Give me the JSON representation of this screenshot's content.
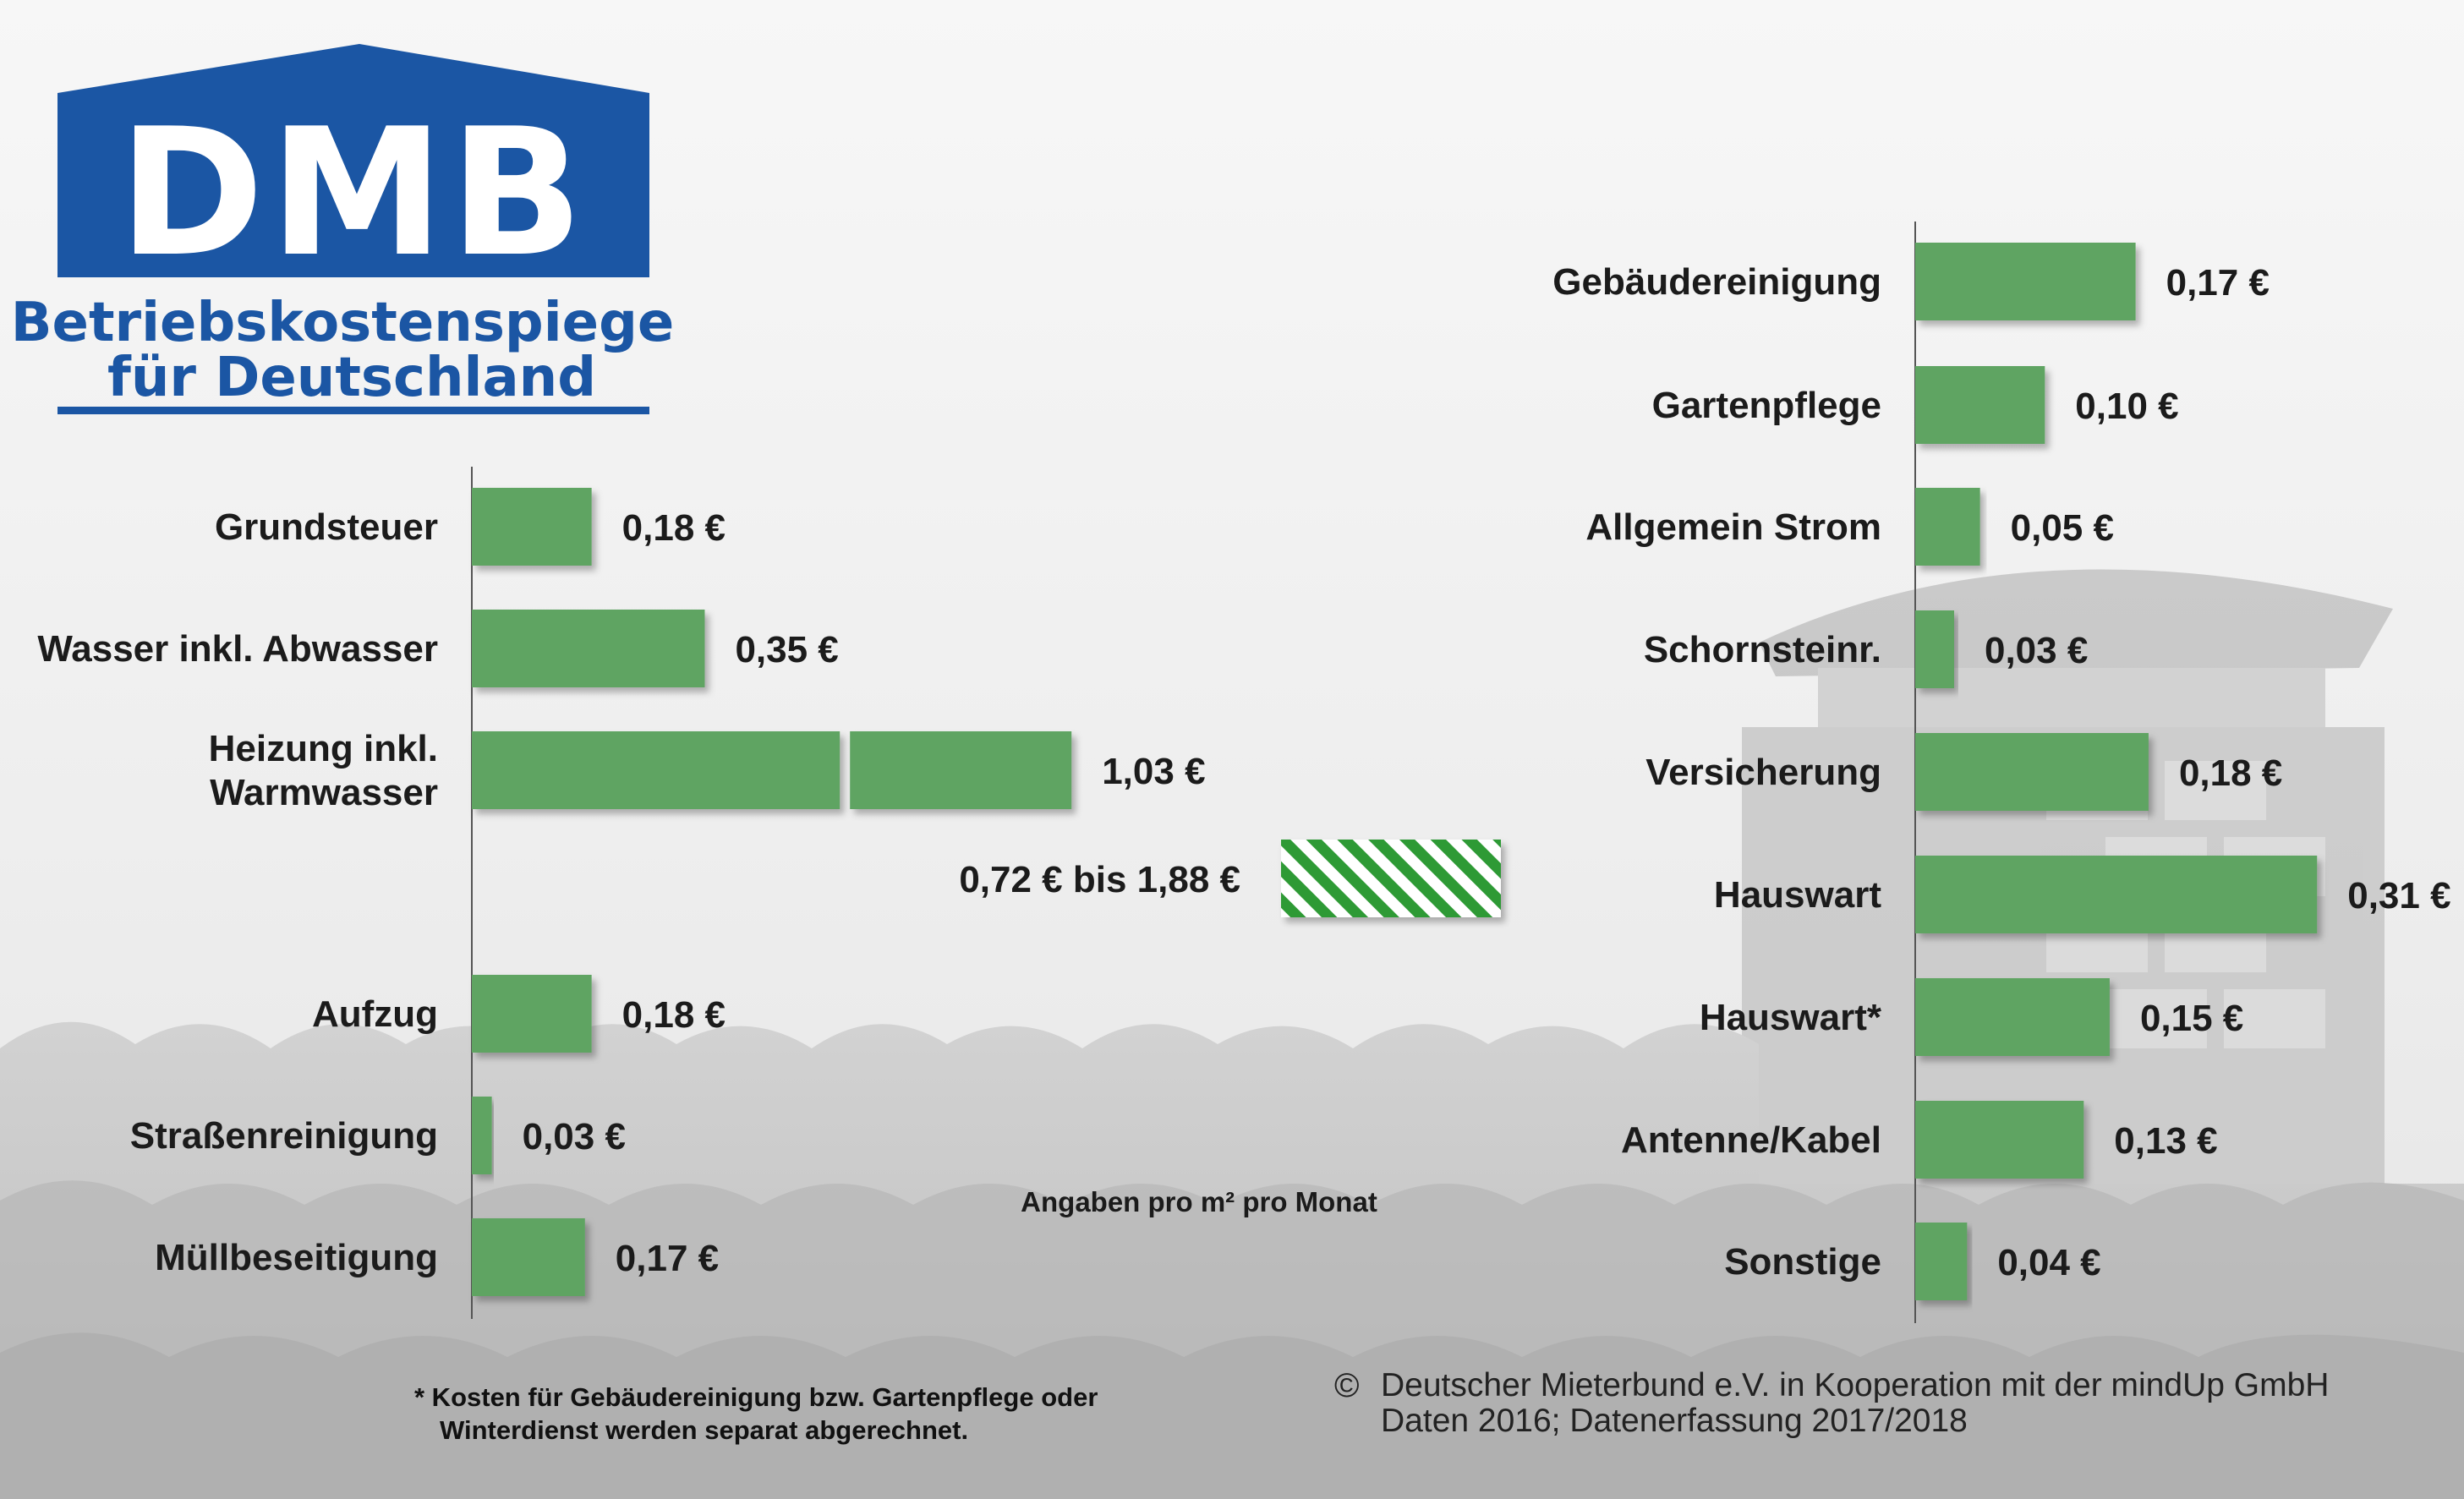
{
  "logo": {
    "brand": "DMB",
    "line1": "Betriebskostenspiegel",
    "line2": "für Deutschland",
    "colors": {
      "blue": "#1b56a4",
      "white": "#ffffff"
    }
  },
  "colors": {
    "bar": "#5ea462",
    "hatch": "#2f9a35"
  },
  "chart_data": [
    {
      "type": "bar",
      "orientation": "horizontal",
      "categories": [
        "Grundsteuer",
        "Wasser inkl. Abwasser",
        "Heizung inkl. Warmwasser",
        "",
        "Aufzug",
        "Straßenreinigung",
        "Müllbeseitigung"
      ],
      "category_lines": [
        [
          "Grundsteuer"
        ],
        [
          "Wasser inkl. Abwasser"
        ],
        [
          "Heizung inkl.",
          "Warmwasser"
        ],
        [],
        [
          "Aufzug"
        ],
        [
          "Straßenreinigung"
        ],
        [
          "Müllbeseitigung"
        ]
      ],
      "values": [
        0.18,
        0.35,
        1.03,
        null,
        0.18,
        0.03,
        0.17
      ],
      "value_labels": [
        "0,18 €",
        "0,35 €",
        "1,03 €",
        "",
        "0,18 €",
        "0,03 €",
        "0,17 €"
      ],
      "axis_break": {
        "bar_index": 2,
        "shown_as": "gap in bar"
      },
      "range": {
        "row_index": 3,
        "low": 0.72,
        "high": 1.88,
        "label": "0,72 € bis 1,88 €",
        "pattern": "hatched"
      },
      "unit_note": "Angaben pro m² pro Monat"
    },
    {
      "type": "bar",
      "orientation": "horizontal",
      "categories": [
        "Gebäudereinigung",
        "Gartenpflege",
        "Allgemein Strom",
        "Schornsteinr.",
        "Versicherung",
        "Hauswart",
        "Hauswart*",
        "Antenne/Kabel",
        "Sonstige"
      ],
      "values": [
        0.17,
        0.1,
        0.05,
        0.03,
        0.18,
        0.31,
        0.15,
        0.13,
        0.04
      ],
      "value_labels": [
        "0,17 €",
        "0,10 €",
        "0,05 €",
        "0,03 €",
        "0,18 €",
        "0,31 €",
        "0,15 €",
        "0,13 €",
        "0,04 €"
      ]
    }
  ],
  "footnote": {
    "line1": "* Kosten für Gebäudereinigung bzw. Gartenpflege oder",
    "line2": "Winterdienst werden separat abgerechnet."
  },
  "credit": {
    "symbol": "©",
    "line1": "Deutscher Mieterbund e.V. in Kooperation mit der mindUp GmbH",
    "line2": "Daten 2016; Datenerfassung 2017/2018"
  }
}
